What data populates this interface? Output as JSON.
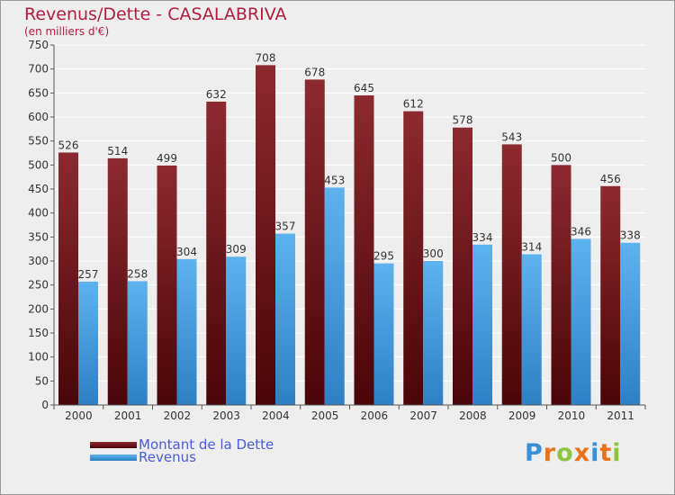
{
  "chart_data": {
    "type": "bar",
    "title": "Revenus/Dette - CASALABRIVA",
    "subtitle": "(en milliers d'€)",
    "categories": [
      "2000",
      "2001",
      "2002",
      "2003",
      "2004",
      "2005",
      "2006",
      "2007",
      "2008",
      "2009",
      "2010",
      "2011"
    ],
    "series": [
      {
        "name": "Montant de la Dette",
        "color": "#7a1a1f",
        "values": [
          526,
          514,
          499,
          632,
          708,
          678,
          645,
          612,
          578,
          543,
          500,
          456
        ]
      },
      {
        "name": "Revenus",
        "color": "#4aa3e6",
        "values": [
          257,
          258,
          304,
          309,
          357,
          453,
          295,
          300,
          334,
          314,
          346,
          338
        ]
      }
    ],
    "ylim": [
      0,
      750
    ],
    "yticks": [
      0,
      50,
      100,
      150,
      200,
      250,
      300,
      350,
      400,
      450,
      500,
      550,
      600,
      650,
      700,
      750
    ],
    "grid": true,
    "legend_position": "bottom-left"
  },
  "logo": {
    "letters": [
      "P",
      "r",
      "o",
      "x",
      "i",
      "t",
      "i"
    ],
    "colors": [
      "#3a8fd9",
      "#e8731c",
      "#8cc63f",
      "#e8731c",
      "#3a8fd9",
      "#e8731c",
      "#8cc63f"
    ]
  }
}
